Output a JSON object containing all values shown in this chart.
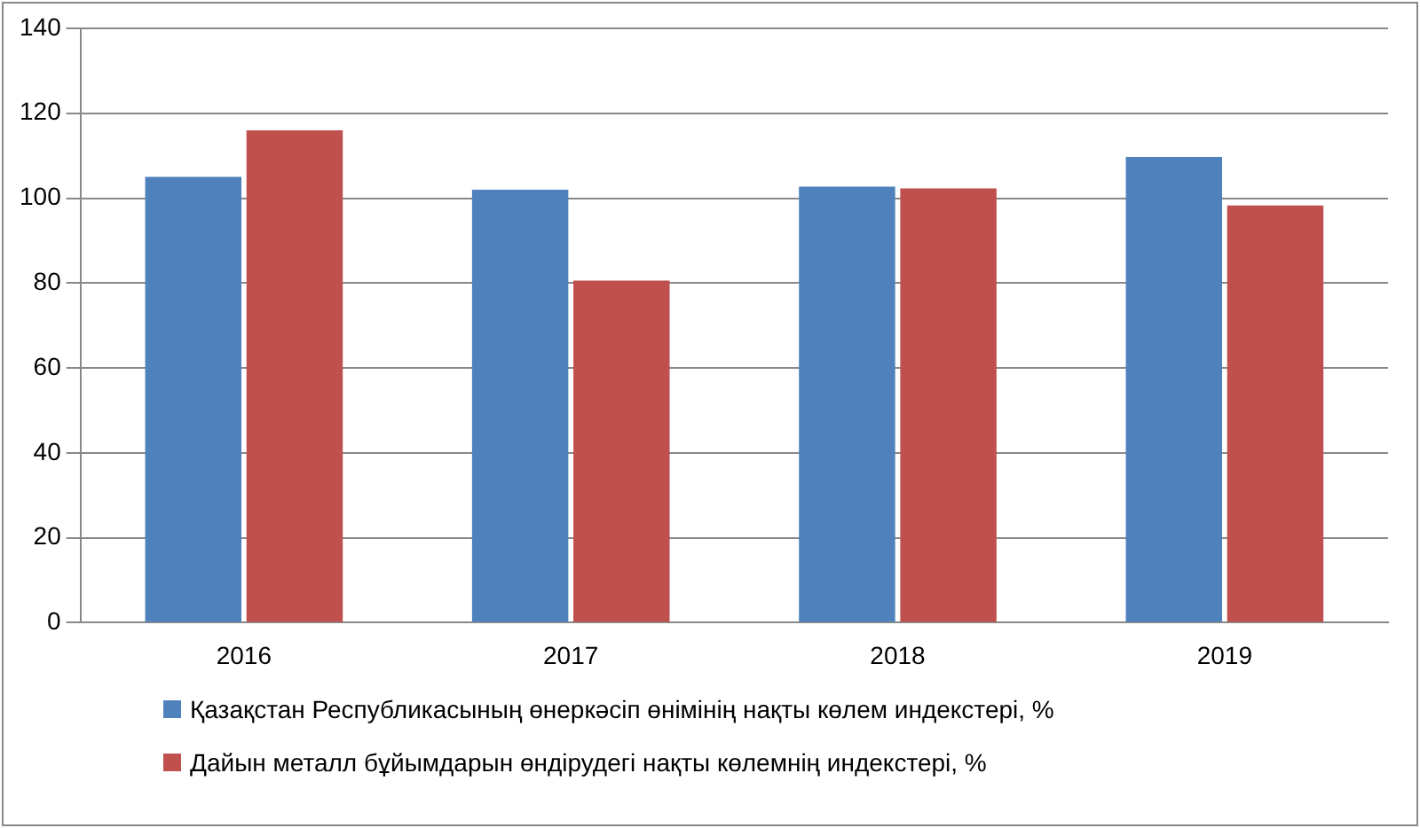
{
  "chart_data": {
    "type": "bar",
    "categories": [
      "2016",
      "2017",
      "2018",
      "2019"
    ],
    "series": [
      {
        "name": "Қазақстан Республикасының өнеркәсіп өнімінің нақты көлем индекстері,  %",
        "color": "#4f81bd",
        "values": [
          105,
          102,
          102.7,
          109.7
        ]
      },
      {
        "name": "Дайын металл бұйымдарын өндірудегі нақты көлемнің индекстері, %",
        "color": "#c0504d",
        "values": [
          116,
          80.6,
          102.3,
          98.3
        ]
      }
    ],
    "ylim": [
      0,
      140
    ],
    "yticks": [
      0,
      20,
      40,
      60,
      80,
      100,
      120,
      140
    ],
    "grid": "y",
    "legend": "bottom"
  }
}
